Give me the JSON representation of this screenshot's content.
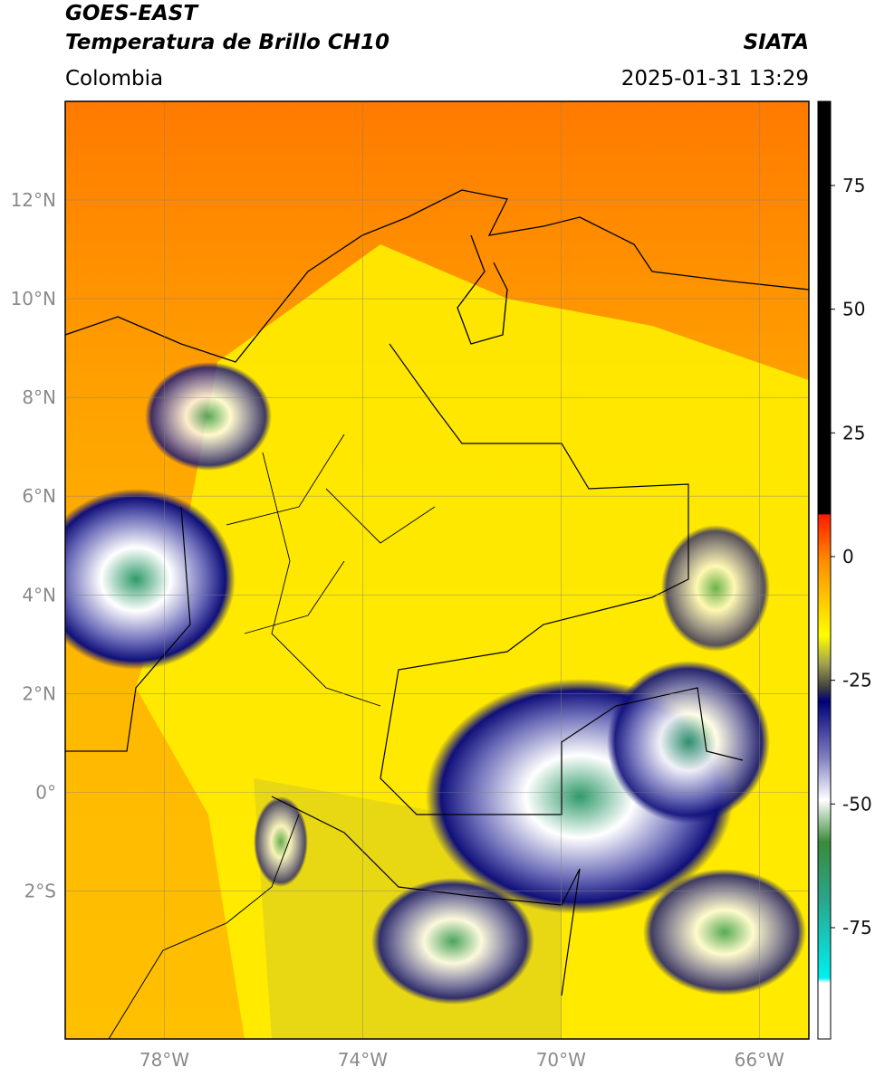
{
  "header": {
    "title": "GOES-EAST",
    "subtitle": "Temperatura de Brillo CH10",
    "region": "Colombia",
    "source": "SIATA",
    "timestamp": "2025-01-31 13:29"
  },
  "map": {
    "lon_lim": [
      -80,
      -65
    ],
    "lat_lim": [
      -5,
      14
    ],
    "lon_ticks": [
      {
        "value": -78,
        "label": "78°W"
      },
      {
        "value": -74,
        "label": "74°W"
      },
      {
        "value": -70,
        "label": "70°W"
      },
      {
        "value": -66,
        "label": "66°W"
      }
    ],
    "lat_ticks": [
      {
        "value": 12,
        "label": "12°N"
      },
      {
        "value": 10,
        "label": "10°N"
      },
      {
        "value": 8,
        "label": "8°N"
      },
      {
        "value": 6,
        "label": "6°N"
      },
      {
        "value": 4,
        "label": "4°N"
      },
      {
        "value": 2,
        "label": "2°N"
      },
      {
        "value": 0,
        "label": "0°"
      },
      {
        "value": -2,
        "label": "2°S"
      }
    ]
  },
  "colorbar": {
    "lim": [
      -97.5,
      92
    ],
    "ticks": [
      75,
      50,
      25,
      0,
      -25,
      -50,
      -75
    ]
  }
}
